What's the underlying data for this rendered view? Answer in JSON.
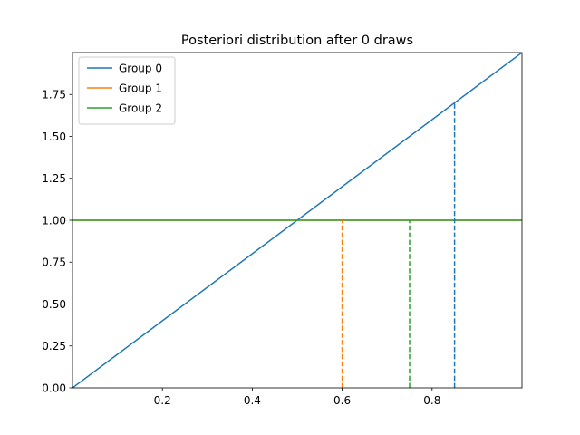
{
  "chart_data": {
    "type": "line",
    "title": "Posteriori distribution after 0 draws",
    "xlabel": "",
    "ylabel": "",
    "xlim": [
      0,
      1
    ],
    "ylim": [
      0,
      2
    ],
    "x_ticks": [
      0.2,
      0.4,
      0.6,
      0.8
    ],
    "x_tick_labels": [
      "0.2",
      "0.4",
      "0.6",
      "0.8"
    ],
    "y_ticks": [
      0.0,
      0.25,
      0.5,
      0.75,
      1.0,
      1.25,
      1.5,
      1.75
    ],
    "y_tick_labels": [
      "0.00",
      "0.25",
      "0.50",
      "0.75",
      "1.00",
      "1.25",
      "1.50",
      "1.75"
    ],
    "grid": false,
    "legend_position": "top-left",
    "series": [
      {
        "name": "Group 0",
        "color": "#1f77b4",
        "x": [
          0,
          1
        ],
        "y": [
          0,
          2
        ],
        "marker_x": 0.85,
        "marker_y": 1.7
      },
      {
        "name": "Group 1",
        "color": "#ff7f0e",
        "x": [
          0,
          1
        ],
        "y": [
          1,
          1
        ],
        "marker_x": 0.6,
        "marker_y": 1.0
      },
      {
        "name": "Group 2",
        "color": "#2ca02c",
        "x": [
          0,
          1
        ],
        "y": [
          1,
          1
        ],
        "marker_x": 0.75,
        "marker_y": 1.0
      }
    ]
  }
}
